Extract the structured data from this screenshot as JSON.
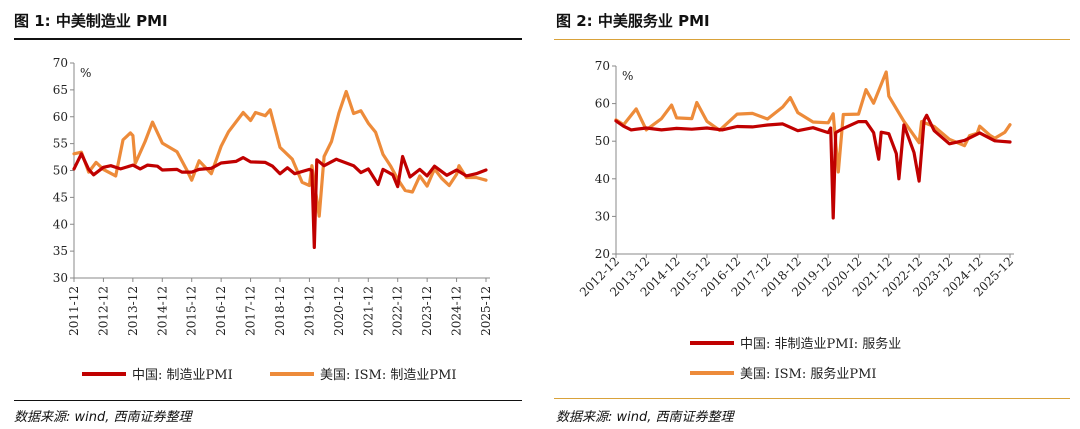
{
  "charts_header": [
    {
      "title": "图 1:  中美制造业 PMI",
      "source": "数据来源: wind, 西南证券整理"
    },
    {
      "title": "图 2:  中美服务业 PMI",
      "source": "数据来源: wind, 西南证券整理"
    }
  ],
  "colors": {
    "china": "#c00000",
    "us": "#ed8b3a"
  },
  "chart_data": [
    {
      "type": "line",
      "title": "图 1:  中美制造业 PMI",
      "ylabel": "%",
      "ylim": [
        30,
        70
      ],
      "yticks": [
        30,
        35,
        40,
        45,
        50,
        55,
        60,
        65,
        70
      ],
      "xlim": [
        "2011-12",
        "2025-12"
      ],
      "xticks": [
        "2011-12",
        "2012-12",
        "2013-12",
        "2014-12",
        "2015-12",
        "2016-12",
        "2017-12",
        "2018-12",
        "2019-12",
        "2020-12",
        "2021-12",
        "2022-12",
        "2023-12",
        "2024-12",
        "2025-12"
      ],
      "legend": "bottom",
      "series": [
        {
          "name": "中国: 制造业PMI",
          "color": "#c00000",
          "points": [
            [
              "2011-12",
              50.3
            ],
            [
              "2012-03",
              53.1
            ],
            [
              "2012-06",
              50.2
            ],
            [
              "2012-08",
              49.2
            ],
            [
              "2012-12",
              50.6
            ],
            [
              "2013-03",
              50.9
            ],
            [
              "2013-07",
              50.3
            ],
            [
              "2013-12",
              51.0
            ],
            [
              "2014-03",
              50.3
            ],
            [
              "2014-06",
              51.0
            ],
            [
              "2014-10",
              50.8
            ],
            [
              "2014-12",
              50.1
            ],
            [
              "2015-06",
              50.2
            ],
            [
              "2015-08",
              49.7
            ],
            [
              "2015-12",
              49.7
            ],
            [
              "2016-03",
              50.2
            ],
            [
              "2016-08",
              50.4
            ],
            [
              "2016-12",
              51.4
            ],
            [
              "2017-06",
              51.7
            ],
            [
              "2017-09",
              52.4
            ],
            [
              "2017-12",
              51.6
            ],
            [
              "2018-06",
              51.5
            ],
            [
              "2018-09",
              50.8
            ],
            [
              "2018-12",
              49.4
            ],
            [
              "2019-03",
              50.5
            ],
            [
              "2019-06",
              49.4
            ],
            [
              "2019-12",
              50.2
            ],
            [
              "2020-01",
              50.0
            ],
            [
              "2020-02",
              35.7
            ],
            [
              "2020-03",
              52.0
            ],
            [
              "2020-06",
              50.9
            ],
            [
              "2020-11",
              52.1
            ],
            [
              "2020-12",
              51.9
            ],
            [
              "2021-06",
              50.9
            ],
            [
              "2021-09",
              49.6
            ],
            [
              "2021-12",
              50.3
            ],
            [
              "2022-04",
              47.4
            ],
            [
              "2022-06",
              50.2
            ],
            [
              "2022-10",
              49.2
            ],
            [
              "2022-12",
              47.0
            ],
            [
              "2023-02",
              52.6
            ],
            [
              "2023-05",
              48.8
            ],
            [
              "2023-09",
              50.2
            ],
            [
              "2023-12",
              49.0
            ],
            [
              "2024-03",
              50.8
            ],
            [
              "2024-08",
              49.1
            ],
            [
              "2024-12",
              50.1
            ],
            [
              "2025-04",
              49.0
            ],
            [
              "2025-08",
              49.4
            ],
            [
              "2025-12",
              50.1
            ]
          ]
        },
        {
          "name": "美国: ISM: 制造业PMI",
          "color": "#ed8b3a",
          "points": [
            [
              "2011-12",
              53.1
            ],
            [
              "2012-03",
              53.4
            ],
            [
              "2012-06",
              49.7
            ],
            [
              "2012-09",
              51.5
            ],
            [
              "2012-12",
              50.2
            ],
            [
              "2013-05",
              49.0
            ],
            [
              "2013-08",
              55.7
            ],
            [
              "2013-11",
              57.0
            ],
            [
              "2013-12",
              56.5
            ],
            [
              "2014-01",
              51.3
            ],
            [
              "2014-05",
              55.4
            ],
            [
              "2014-08",
              59.0
            ],
            [
              "2014-12",
              55.1
            ],
            [
              "2015-06",
              53.5
            ],
            [
              "2015-10",
              50.1
            ],
            [
              "2015-12",
              48.2
            ],
            [
              "2016-03",
              51.8
            ],
            [
              "2016-08",
              49.4
            ],
            [
              "2016-12",
              54.5
            ],
            [
              "2017-03",
              57.2
            ],
            [
              "2017-09",
              60.8
            ],
            [
              "2017-12",
              59.3
            ],
            [
              "2018-02",
              60.8
            ],
            [
              "2018-06",
              60.2
            ],
            [
              "2018-08",
              61.3
            ],
            [
              "2018-12",
              54.3
            ],
            [
              "2019-05",
              52.1
            ],
            [
              "2019-09",
              47.8
            ],
            [
              "2019-12",
              47.2
            ],
            [
              "2020-01",
              50.9
            ],
            [
              "2020-04",
              41.5
            ],
            [
              "2020-06",
              52.6
            ],
            [
              "2020-09",
              55.4
            ],
            [
              "2020-12",
              60.7
            ],
            [
              "2021-03",
              64.7
            ],
            [
              "2021-06",
              60.6
            ],
            [
              "2021-09",
              61.1
            ],
            [
              "2021-12",
              58.8
            ],
            [
              "2022-03",
              57.1
            ],
            [
              "2022-06",
              53.0
            ],
            [
              "2022-09",
              50.9
            ],
            [
              "2022-12",
              48.4
            ],
            [
              "2023-03",
              46.3
            ],
            [
              "2023-06",
              46.0
            ],
            [
              "2023-09",
              49.0
            ],
            [
              "2023-12",
              47.1
            ],
            [
              "2024-03",
              50.3
            ],
            [
              "2024-06",
              48.5
            ],
            [
              "2024-09",
              47.2
            ],
            [
              "2024-12",
              49.3
            ],
            [
              "2025-01",
              50.9
            ],
            [
              "2025-04",
              48.7
            ],
            [
              "2025-08",
              48.7
            ],
            [
              "2025-12",
              48.2
            ]
          ]
        }
      ]
    },
    {
      "type": "line",
      "title": "图 2:  中美服务业 PMI",
      "ylabel": "%",
      "ylim": [
        20,
        70
      ],
      "yticks": [
        20,
        30,
        40,
        50,
        60,
        70
      ],
      "xlim": [
        "2012-12",
        "2025-12"
      ],
      "xticks": [
        "2012-12",
        "2013-12",
        "2014-12",
        "2015-12",
        "2016-12",
        "2017-12",
        "2018-12",
        "2019-12",
        "2020-12",
        "2021-12",
        "2022-12",
        "2023-12",
        "2024-12",
        "2025-12"
      ],
      "legend": "bottom",
      "series": [
        {
          "name": "中国: 非制造业PMI: 服务业",
          "color": "#c00000",
          "points": [
            [
              "2012-12",
              55.4
            ],
            [
              "2013-03",
              54.0
            ],
            [
              "2013-06",
              53.0
            ],
            [
              "2013-12",
              53.5
            ],
            [
              "2014-06",
              53.0
            ],
            [
              "2014-12",
              53.4
            ],
            [
              "2015-06",
              53.2
            ],
            [
              "2015-12",
              53.5
            ],
            [
              "2016-06",
              53.0
            ],
            [
              "2016-12",
              53.9
            ],
            [
              "2017-06",
              53.8
            ],
            [
              "2017-12",
              54.3
            ],
            [
              "2018-06",
              54.6
            ],
            [
              "2018-12",
              52.8
            ],
            [
              "2019-06",
              53.6
            ],
            [
              "2019-12",
              52.3
            ],
            [
              "2020-01",
              53.5
            ],
            [
              "2020-02",
              29.6
            ],
            [
              "2020-03",
              52.3
            ],
            [
              "2020-06",
              53.4
            ],
            [
              "2020-12",
              55.2
            ],
            [
              "2021-03",
              55.2
            ],
            [
              "2021-06",
              52.3
            ],
            [
              "2021-08",
              45.2
            ],
            [
              "2021-09",
              52.4
            ],
            [
              "2021-12",
              52.0
            ],
            [
              "2022-03",
              46.7
            ],
            [
              "2022-04",
              40.0
            ],
            [
              "2022-06",
              54.3
            ],
            [
              "2022-10",
              47.0
            ],
            [
              "2022-12",
              39.4
            ],
            [
              "2023-02",
              55.6
            ],
            [
              "2023-03",
              56.9
            ],
            [
              "2023-06",
              52.8
            ],
            [
              "2023-12",
              49.3
            ],
            [
              "2024-06",
              50.2
            ],
            [
              "2024-12",
              52.2
            ],
            [
              "2025-06",
              50.1
            ],
            [
              "2025-12",
              49.8
            ]
          ]
        },
        {
          "name": "美国: ISM: 服务业PMI",
          "color": "#ed8b3a",
          "points": [
            [
              "2012-12",
              55.7
            ],
            [
              "2013-03",
              54.4
            ],
            [
              "2013-08",
              58.6
            ],
            [
              "2013-12",
              53.0
            ],
            [
              "2014-06",
              56.0
            ],
            [
              "2014-10",
              59.6
            ],
            [
              "2014-12",
              56.2
            ],
            [
              "2015-06",
              56.0
            ],
            [
              "2015-08",
              60.3
            ],
            [
              "2015-12",
              55.3
            ],
            [
              "2016-05",
              52.9
            ],
            [
              "2016-12",
              57.2
            ],
            [
              "2017-06",
              57.4
            ],
            [
              "2017-12",
              55.9
            ],
            [
              "2018-06",
              59.1
            ],
            [
              "2018-09",
              61.6
            ],
            [
              "2018-12",
              57.6
            ],
            [
              "2019-06",
              55.1
            ],
            [
              "2019-12",
              54.9
            ],
            [
              "2020-02",
              57.3
            ],
            [
              "2020-04",
              41.8
            ],
            [
              "2020-06",
              57.1
            ],
            [
              "2020-12",
              57.2
            ],
            [
              "2021-03",
              63.7
            ],
            [
              "2021-06",
              60.1
            ],
            [
              "2021-11",
              68.4
            ],
            [
              "2021-12",
              62.0
            ],
            [
              "2022-06",
              55.3
            ],
            [
              "2022-12",
              49.6
            ],
            [
              "2023-01",
              55.2
            ],
            [
              "2023-06",
              53.9
            ],
            [
              "2023-12",
              50.5
            ],
            [
              "2024-04",
              49.4
            ],
            [
              "2024-06",
              48.8
            ],
            [
              "2024-08",
              51.5
            ],
            [
              "2024-11",
              52.1
            ],
            [
              "2024-12",
              54.0
            ],
            [
              "2025-04",
              51.6
            ],
            [
              "2025-06",
              50.8
            ],
            [
              "2025-10",
              52.4
            ],
            [
              "2025-12",
              54.4
            ]
          ]
        }
      ]
    }
  ]
}
